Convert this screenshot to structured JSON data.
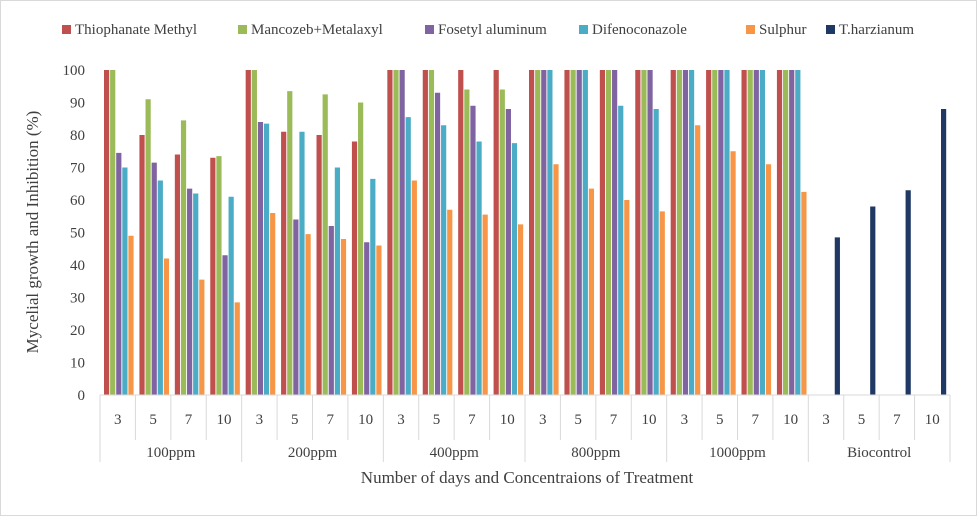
{
  "chart_data": {
    "type": "bar",
    "title": "",
    "ylabel": "Mycelial growth and Inhibition (%)",
    "xlabel": "Number of days and Concentraions of Treatment",
    "ylim": [
      0,
      100
    ],
    "yticks": [
      0,
      10,
      20,
      30,
      40,
      50,
      60,
      70,
      80,
      90,
      100
    ],
    "grid": false,
    "legend_position": "top",
    "groups": [
      {
        "label": "100ppm",
        "days": [
          "3",
          "5",
          "7",
          "10"
        ]
      },
      {
        "label": "200ppm",
        "days": [
          "3",
          "5",
          "7",
          "10"
        ]
      },
      {
        "label": "400ppm",
        "days": [
          "3",
          "5",
          "7",
          "10"
        ]
      },
      {
        "label": "800ppm",
        "days": [
          "3",
          "5",
          "7",
          "10"
        ]
      },
      {
        "label": "1000ppm",
        "days": [
          "3",
          "5",
          "7",
          "10"
        ]
      },
      {
        "label": "Biocontrol",
        "days": [
          "3",
          "5",
          "7",
          "10"
        ]
      }
    ],
    "series": [
      {
        "name": "Thiophanate Methyl",
        "color": "#c0504d",
        "values": [
          100,
          80,
          74,
          73,
          100,
          81,
          80,
          78,
          100,
          100,
          100,
          100,
          100,
          100,
          100,
          100,
          100,
          100,
          100,
          100,
          null,
          null,
          null,
          null
        ]
      },
      {
        "name": "Mancozeb+Metalaxyl",
        "color": "#9bbb59",
        "values": [
          100,
          91,
          84.5,
          73.5,
          100,
          93.5,
          92.5,
          90,
          100,
          100,
          94,
          94,
          100,
          100,
          100,
          100,
          100,
          100,
          100,
          100,
          null,
          null,
          null,
          null
        ]
      },
      {
        "name": "Fosetyl aluminum",
        "color": "#8064a2",
        "values": [
          74.5,
          71.5,
          63.5,
          43,
          84,
          54,
          52,
          47,
          100,
          93,
          89,
          88,
          100,
          100,
          100,
          100,
          100,
          100,
          100,
          100,
          null,
          null,
          null,
          null
        ]
      },
      {
        "name": "Difenoconazole",
        "color": "#4bacc6",
        "values": [
          70,
          66,
          62,
          61,
          83.5,
          81,
          70,
          66.5,
          85.5,
          83,
          78,
          77.5,
          100,
          100,
          89,
          88,
          100,
          100,
          100,
          100,
          null,
          null,
          null,
          null
        ]
      },
      {
        "name": "Sulphur",
        "color": "#f79646",
        "values": [
          49,
          42,
          35.5,
          28.5,
          56,
          49.5,
          48,
          46,
          66,
          57,
          55.5,
          52.5,
          71,
          63.5,
          60,
          56.5,
          83,
          75,
          71,
          62.5,
          null,
          null,
          null,
          null
        ]
      },
      {
        "name": "T.harzianum",
        "color": "#1f3864",
        "values": [
          null,
          null,
          null,
          null,
          null,
          null,
          null,
          null,
          null,
          null,
          null,
          null,
          null,
          null,
          null,
          null,
          null,
          null,
          null,
          null,
          48.5,
          58,
          63,
          88
        ]
      }
    ]
  }
}
